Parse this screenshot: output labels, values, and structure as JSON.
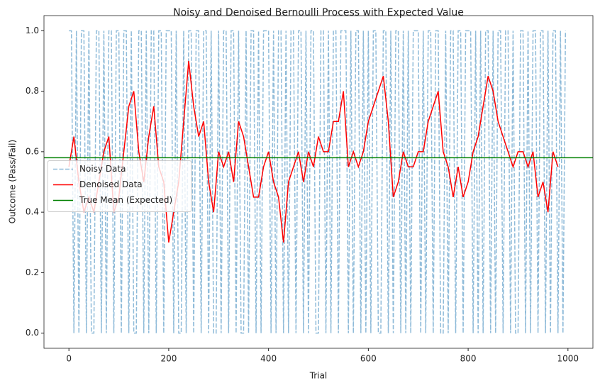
{
  "chart_data": {
    "type": "line",
    "title": "Noisy and Denoised Bernoulli Process with Expected Value",
    "x_label": "Trial",
    "y_label": "Outcome (Pass/Fail)",
    "xlim": [
      -50,
      1050
    ],
    "xticks": [
      0,
      200,
      400,
      600,
      800,
      1000
    ],
    "ylim": [
      -0.05,
      1.05
    ],
    "yticks": [
      {
        "value": 0,
        "label": "0.0"
      },
      0.2,
      0.4,
      0.6,
      0.8,
      {
        "value": 1,
        "label": "1.0"
      }
    ],
    "legend": "center left",
    "series": [
      {
        "name": "Noisy Data",
        "color": "#1f77b4",
        "opacity": 0.5,
        "linestyle": "dashed",
        "x": [
          0,
          5,
          10,
          15,
          20,
          25,
          30,
          35,
          40,
          45,
          50,
          55,
          60,
          65,
          70,
          75,
          80,
          85,
          90,
          95,
          100,
          105,
          110,
          115,
          120,
          125,
          130,
          135,
          140,
          145,
          150,
          155,
          160,
          165,
          170,
          175,
          180,
          185,
          190,
          195,
          200,
          205,
          210,
          215,
          220,
          225,
          230,
          235,
          240,
          245,
          250,
          255,
          260,
          265,
          270,
          275,
          280,
          285,
          290,
          295,
          300,
          305,
          310,
          315,
          320,
          325,
          330,
          335,
          340,
          345,
          350,
          355,
          360,
          365,
          370,
          375,
          380,
          385,
          390,
          395,
          400,
          405,
          410,
          415,
          420,
          425,
          430,
          435,
          440,
          445,
          450,
          455,
          460,
          465,
          470,
          475,
          480,
          485,
          490,
          495,
          500,
          505,
          510,
          515,
          520,
          525,
          530,
          535,
          540,
          545,
          550,
          555,
          560,
          565,
          570,
          575,
          580,
          585,
          590,
          595,
          600,
          605,
          610,
          615,
          620,
          625,
          630,
          635,
          640,
          645,
          650,
          655,
          660,
          665,
          670,
          675,
          680,
          685,
          690,
          695,
          700,
          705,
          710,
          715,
          720,
          725,
          730,
          735,
          740,
          745,
          750,
          755,
          760,
          765,
          770,
          775,
          780,
          785,
          790,
          795,
          800,
          805,
          810,
          815,
          820,
          825,
          830,
          835,
          840,
          845,
          850,
          855,
          860,
          865,
          870,
          875,
          880,
          885,
          890,
          895,
          900,
          905,
          910,
          915,
          920,
          925,
          930,
          935,
          940,
          945,
          950,
          955,
          960,
          965,
          970,
          975,
          980,
          985,
          990,
          995
        ],
        "values": [
          1,
          1,
          0,
          1,
          0,
          1,
          1,
          0,
          1,
          0,
          0,
          1,
          1,
          0,
          1,
          0,
          1,
          1,
          0,
          1,
          1,
          0,
          1,
          1,
          0,
          1,
          0,
          0,
          1,
          1,
          0,
          1,
          0,
          1,
          1,
          0,
          1,
          1,
          0,
          1,
          1,
          1,
          0,
          1,
          0,
          0,
          1,
          0,
          1,
          1,
          0,
          1,
          1,
          0,
          1,
          1,
          0,
          1,
          0,
          0,
          1,
          0,
          1,
          1,
          0,
          1,
          1,
          0,
          1,
          0,
          0,
          1,
          0,
          1,
          1,
          0,
          1,
          0,
          1,
          1,
          1,
          0,
          1,
          0,
          1,
          1,
          0,
          1,
          0,
          1,
          1,
          0,
          1,
          1,
          0,
          1,
          0,
          1,
          1,
          0,
          0,
          1,
          1,
          0,
          1,
          0,
          1,
          1,
          0,
          1,
          1,
          1,
          0,
          1,
          0,
          1,
          1,
          0,
          1,
          0,
          1,
          0,
          1,
          1,
          0,
          0,
          1,
          1,
          0,
          1,
          0,
          1,
          1,
          0,
          1,
          0,
          1,
          0,
          1,
          1,
          1,
          0,
          1,
          0,
          1,
          1,
          0,
          1,
          1,
          0,
          0,
          1,
          0,
          1,
          1,
          0,
          1,
          1,
          0,
          1,
          1,
          1,
          0,
          1,
          0,
          1,
          0,
          1,
          1,
          0,
          1,
          0,
          1,
          1,
          0,
          1,
          1,
          0,
          1,
          0,
          0,
          1,
          1,
          0,
          1,
          0,
          1,
          1,
          0,
          1,
          1,
          0,
          1,
          0,
          1,
          1,
          0,
          1,
          0,
          1
        ]
      },
      {
        "name": "Denoised Data",
        "color": "#ff0000",
        "x": [
          0,
          10,
          20,
          30,
          40,
          50,
          60,
          70,
          80,
          90,
          100,
          110,
          120,
          130,
          140,
          150,
          160,
          170,
          180,
          190,
          200,
          210,
          220,
          230,
          240,
          250,
          260,
          270,
          280,
          290,
          300,
          310,
          320,
          330,
          340,
          350,
          360,
          370,
          380,
          390,
          400,
          410,
          420,
          430,
          440,
          450,
          460,
          470,
          480,
          490,
          500,
          510,
          520,
          530,
          540,
          550,
          560,
          570,
          580,
          590,
          600,
          610,
          620,
          630,
          640,
          650,
          660,
          670,
          680,
          690,
          700,
          710,
          720,
          730,
          740,
          750,
          760,
          770,
          780,
          790,
          800,
          810,
          820,
          830,
          840,
          850,
          860,
          870,
          880,
          890,
          900,
          910,
          920,
          930,
          940,
          950,
          960,
          970,
          980
        ],
        "values": [
          0.55,
          0.65,
          0.5,
          0.4,
          0.45,
          0.4,
          0.5,
          0.6,
          0.65,
          0.4,
          0.45,
          0.6,
          0.75,
          0.8,
          0.6,
          0.5,
          0.65,
          0.75,
          0.55,
          0.5,
          0.3,
          0.4,
          0.5,
          0.7,
          0.9,
          0.75,
          0.65,
          0.7,
          0.5,
          0.4,
          0.6,
          0.55,
          0.6,
          0.5,
          0.7,
          0.65,
          0.55,
          0.45,
          0.45,
          0.55,
          0.6,
          0.5,
          0.45,
          0.3,
          0.5,
          0.55,
          0.6,
          0.5,
          0.6,
          0.55,
          0.65,
          0.6,
          0.6,
          0.7,
          0.7,
          0.8,
          0.55,
          0.6,
          0.55,
          0.6,
          0.7,
          0.75,
          0.8,
          0.85,
          0.7,
          0.45,
          0.5,
          0.6,
          0.55,
          0.55,
          0.6,
          0.6,
          0.7,
          0.75,
          0.8,
          0.6,
          0.55,
          0.45,
          0.55,
          0.45,
          0.5,
          0.6,
          0.65,
          0.75,
          0.85,
          0.8,
          0.7,
          0.65,
          0.6,
          0.55,
          0.6,
          0.6,
          0.55,
          0.6,
          0.45,
          0.5,
          0.4,
          0.6,
          0.55
        ]
      },
      {
        "name": "True Mean (Expected)",
        "color": "#008000",
        "hline": true,
        "values": [
          0.58
        ]
      }
    ]
  }
}
